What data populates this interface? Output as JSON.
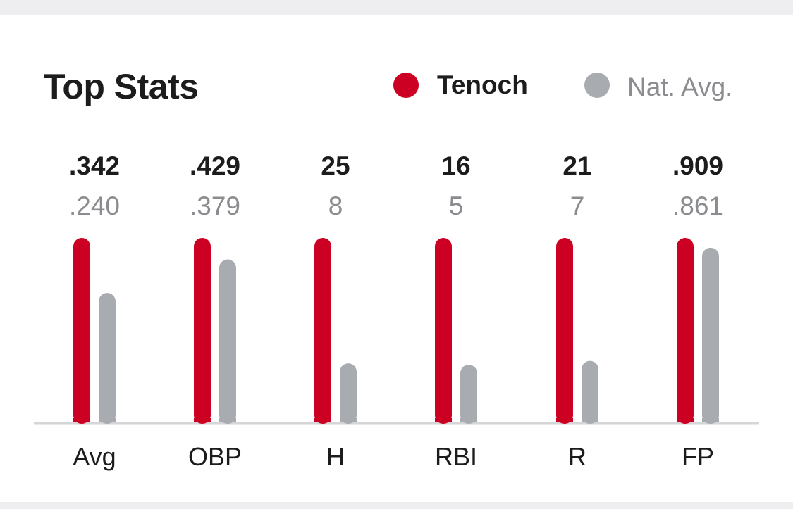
{
  "colors": {
    "player": "#cc0022",
    "average": "#a8abb0",
    "axis": "#d6d6d9",
    "value_primary": "#1c1c1c",
    "value_secondary": "#8a8c90"
  },
  "header": {
    "title": "Top Stats"
  },
  "legend": {
    "player_label": "Tenoch",
    "average_label": "Nat. Avg."
  },
  "chart_data": {
    "type": "bar",
    "title": "Top Stats",
    "categories": [
      "Avg",
      "OBP",
      "H",
      "RBI",
      "R",
      "FP"
    ],
    "series": [
      {
        "name": "Tenoch",
        "values": [
          0.342,
          0.429,
          25,
          16,
          21,
          0.909
        ],
        "labels": [
          ".342",
          ".429",
          "25",
          "16",
          "21",
          ".909"
        ]
      },
      {
        "name": "Nat. Avg.",
        "values": [
          0.24,
          0.379,
          8,
          5,
          7,
          0.861
        ],
        "labels": [
          ".240",
          ".379",
          "8",
          "5",
          "7",
          ".861"
        ]
      }
    ],
    "normalization": "per-category relative to Tenoch value",
    "legend_position": "top-right",
    "grid": false
  }
}
